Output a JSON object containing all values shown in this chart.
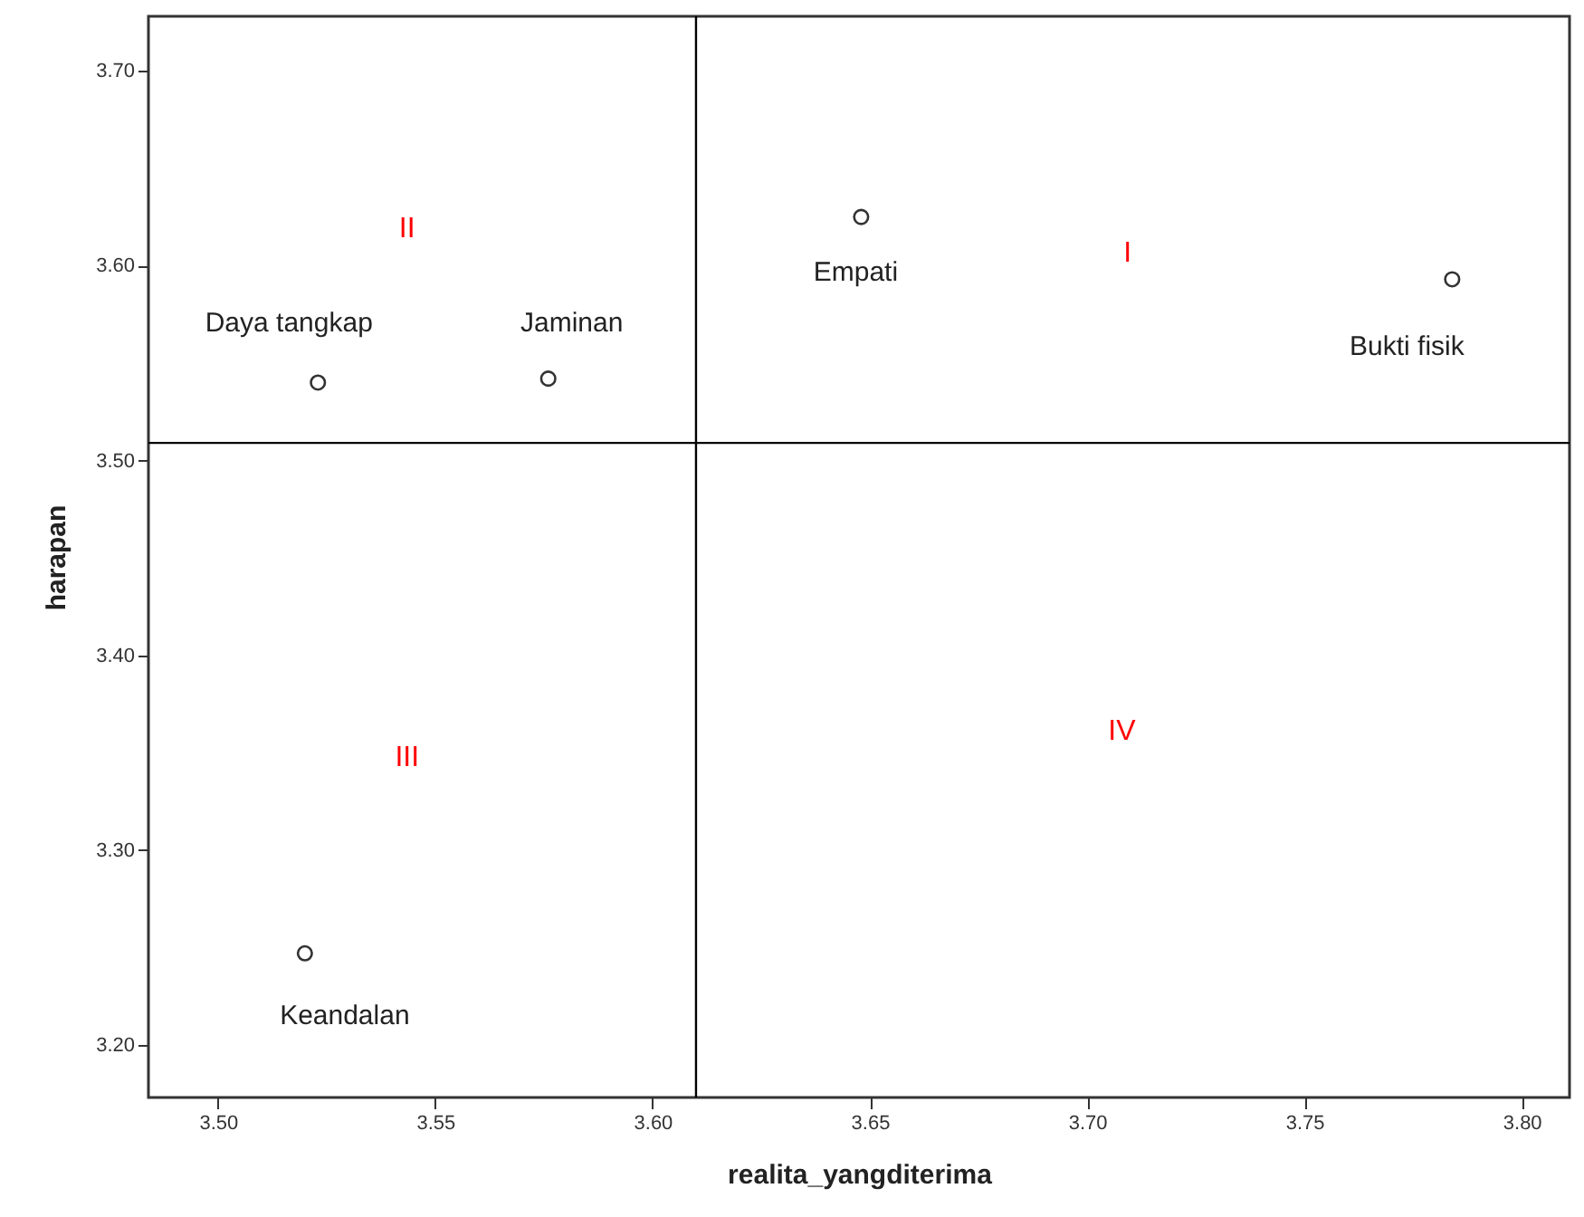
{
  "chart_data": {
    "type": "scatter",
    "xlabel": "realita_yangditerima",
    "ylabel": "harapan",
    "x": [
      3.523,
      3.576,
      3.648,
      3.784,
      3.52
    ],
    "series": [
      {
        "color": "#333333",
        "values": [
          3.54,
          3.542,
          3.625,
          3.593,
          3.247
        ],
        "value_labels": [
          "Daya tangkap",
          "Jaminan",
          "Empati",
          "Bukti fisik",
          "Keandalan"
        ]
      }
    ],
    "marker": "circle",
    "xlim": [
      3.484,
      3.811
    ],
    "xticks": [
      {
        "value": 3.5,
        "label": "3.50"
      },
      {
        "value": 3.55,
        "label": "3.55"
      },
      {
        "value": 3.6,
        "label": "3.60"
      },
      {
        "value": 3.65,
        "label": "3.65"
      },
      {
        "value": 3.7,
        "label": "3.70"
      },
      {
        "value": 3.75,
        "label": "3.75"
      },
      {
        "value": 3.8,
        "label": "3.80"
      }
    ],
    "ylim": [
      3.173,
      3.728
    ],
    "yticks": [
      {
        "value": 3.2,
        "label": "3.20"
      },
      {
        "value": 3.3,
        "label": "3.30"
      },
      {
        "value": 3.4,
        "label": "3.40"
      },
      {
        "value": 3.5,
        "label": "3.50"
      },
      {
        "value": 3.6,
        "label": "3.60"
      },
      {
        "value": 3.7,
        "label": "3.70"
      }
    ],
    "ref_lines": [
      {
        "axis": "x",
        "value": 3.61,
        "color": "#000000"
      },
      {
        "axis": "y",
        "value": 3.509,
        "color": "#000000"
      }
    ],
    "annotations": [
      "II",
      "I",
      "III",
      "IV"
    ]
  }
}
